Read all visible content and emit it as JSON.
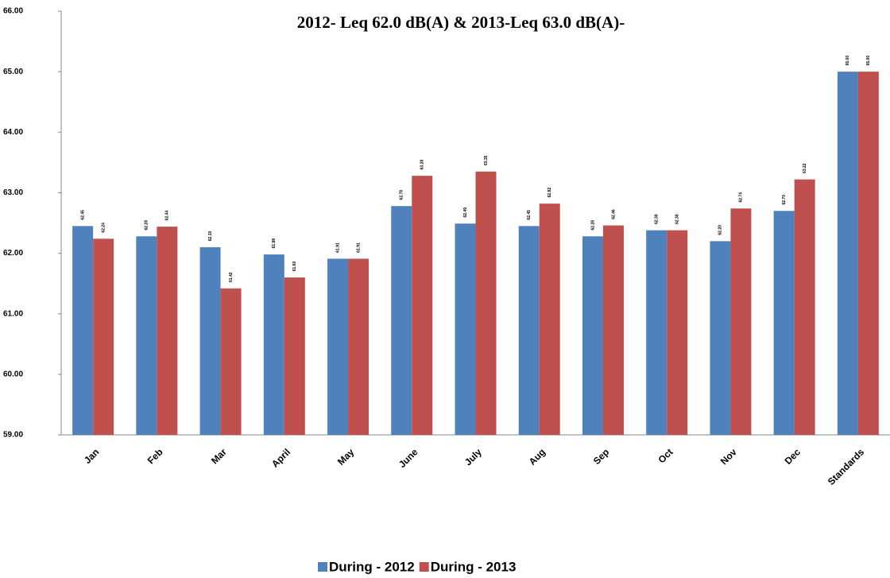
{
  "chart_data": {
    "type": "bar",
    "title": "2012- Leq 62.0 dB(A) & 2013-Leq 63.0  dB(A)-",
    "categories": [
      "Jan",
      "Feb",
      "Mar",
      "April",
      "May",
      "June",
      "July",
      "Aug",
      "Sep",
      "Oct",
      "Nov",
      "Dec",
      "Standards"
    ],
    "series": [
      {
        "name": "During - 2012",
        "color": "#4f81bd",
        "values": [
          62.45,
          62.28,
          62.1,
          61.98,
          61.91,
          62.78,
          62.49,
          62.45,
          62.28,
          62.38,
          62.2,
          62.7,
          65
        ],
        "value_labels": [
          "62.45",
          "62.28",
          "62.10",
          "61.98",
          "61.91",
          "62.78",
          "62.49",
          "62.45",
          "62.28",
          "62.38",
          "62.20",
          "62.70",
          "65.00"
        ]
      },
      {
        "name": "During - 2013",
        "color": "#c0504d",
        "values": [
          62.24,
          62.44,
          61.42,
          61.6,
          61.91,
          63.28,
          63.35,
          62.82,
          62.46,
          62.38,
          62.74,
          63.22,
          65
        ],
        "value_labels": [
          "62.24",
          "62.44",
          "61.42",
          "61.60",
          "61.91",
          "63.28",
          "63.35",
          "62.82",
          "62.46",
          "62.38",
          "62.74",
          "63.22",
          "65.00"
        ]
      }
    ],
    "ylim": [
      59,
      66
    ],
    "yticks": [
      {
        "value": 59,
        "label": "59.00"
      },
      {
        "value": 60,
        "label": "60.00"
      },
      {
        "value": 61,
        "label": "61.00"
      },
      {
        "value": 62,
        "label": "62.00"
      },
      {
        "value": 63,
        "label": "63.00"
      },
      {
        "value": 64,
        "label": "64.00"
      },
      {
        "value": 65,
        "label": "65.00"
      },
      {
        "value": 66,
        "label": "66.00"
      }
    ],
    "grid": false,
    "legend": "bottom"
  }
}
